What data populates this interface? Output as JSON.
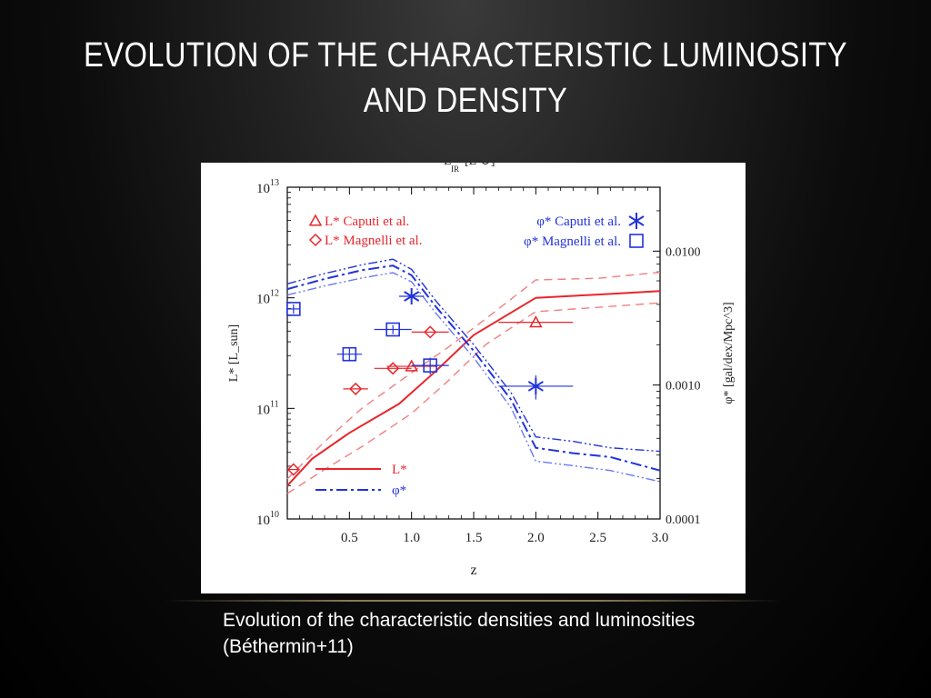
{
  "slide": {
    "title": "Evolution of the characteristic luminosity and density",
    "caption": "Evolution of the characteristic densities and luminosities (Béthermin+11)"
  },
  "colors": {
    "red": "#e8262b",
    "blue": "#2233d8",
    "lightred": "#f08080",
    "lightblue": "#6a7af0"
  },
  "chart_data": {
    "type": "line",
    "title": "",
    "top_label": "L_IR [L_sun]",
    "xlabel": "z",
    "ylabel_left": "L* [L_sun]",
    "ylabel_right": "φ* [gal/dex/Mpc^3]",
    "xlim": [
      0.0,
      3.0
    ],
    "ylim_left": [
      10000000000.0,
      10000000000000.0
    ],
    "ylim_right": [
      0.0001,
      0.03
    ],
    "x_ticks": [
      "0.5",
      "1.0",
      "1.5",
      "2.0",
      "2.5",
      "3.0"
    ],
    "y_ticks_left": [
      {
        "value": 10000000000.0,
        "base": "10",
        "exp": "10"
      },
      {
        "value": 100000000000.0,
        "base": "10",
        "exp": "11"
      },
      {
        "value": 1000000000000.0,
        "base": "10",
        "exp": "12"
      },
      {
        "value": 10000000000000.0,
        "base": "10",
        "exp": "13"
      }
    ],
    "y_ticks_right": [
      {
        "value": 0.0001,
        "label": "0.0001"
      },
      {
        "value": 0.001,
        "label": "0.0010"
      },
      {
        "value": 0.01,
        "label": "0.0100"
      }
    ],
    "legend": {
      "top_left": [
        "L* Caputi et al.",
        "L* Magnelli et al."
      ],
      "top_right": [
        "φ* Caputi et al.",
        "φ* Magnelli et al."
      ],
      "bottom": [
        "L*",
        "φ*"
      ]
    },
    "series": [
      {
        "name": "L*",
        "axis": "left",
        "style": "solid",
        "color": "#e8262b",
        "x": [
          0.0,
          0.2,
          0.5,
          0.9,
          1.2,
          1.5,
          2.0,
          2.5,
          3.0
        ],
        "y": [
          20000000000.0,
          35000000000.0,
          60000000000.0,
          110000000000.0,
          220000000000.0,
          460000000000.0,
          1000000000000.0,
          1070000000000.0,
          1150000000000.0
        ]
      },
      {
        "name": "L* upper",
        "axis": "left",
        "style": "dashed",
        "color": "#f08080",
        "x": [
          0.0,
          0.3,
          0.6,
          1.0,
          1.3,
          1.6,
          2.0,
          2.5,
          3.0
        ],
        "y": [
          23000000000.0,
          50000000000.0,
          100000000000.0,
          210000000000.0,
          360000000000.0,
          650000000000.0,
          1450000000000.0,
          1500000000000.0,
          1700000000000.0
        ]
      },
      {
        "name": "L* lower",
        "axis": "left",
        "style": "dashed",
        "color": "#f08080",
        "x": [
          0.0,
          0.3,
          0.6,
          1.0,
          1.3,
          1.6,
          2.0,
          2.5,
          3.0
        ],
        "y": [
          17000000000.0,
          28000000000.0,
          45000000000.0,
          90000000000.0,
          180000000000.0,
          380000000000.0,
          750000000000.0,
          820000000000.0,
          900000000000.0
        ]
      },
      {
        "name": "φ*",
        "axis": "right",
        "style": "dashdot",
        "color": "#2233d8",
        "x": [
          0.0,
          0.3,
          0.6,
          0.85,
          1.0,
          1.2,
          1.5,
          1.8,
          2.0,
          2.3,
          2.6,
          3.0
        ],
        "y": [
          0.0052,
          0.0062,
          0.0072,
          0.0078,
          0.0066,
          0.0038,
          0.0018,
          0.00078,
          0.00034,
          0.00031,
          0.00029,
          0.00023
        ]
      },
      {
        "name": "φ* upper",
        "axis": "right",
        "style": "dashdotdot",
        "color": "#2233d8",
        "x": [
          0.0,
          0.3,
          0.6,
          0.85,
          1.0,
          1.2,
          1.5,
          1.8,
          2.0,
          2.3,
          2.6,
          3.0
        ],
        "y": [
          0.0057,
          0.0068,
          0.0079,
          0.0087,
          0.0073,
          0.0042,
          0.002,
          0.00088,
          0.00041,
          0.00038,
          0.00034,
          0.00032
        ]
      },
      {
        "name": "φ* lower",
        "axis": "right",
        "style": "dashdotdot",
        "color": "#6a7af0",
        "x": [
          0.0,
          0.3,
          0.6,
          0.85,
          1.0,
          1.2,
          1.5,
          1.8,
          2.0,
          2.3,
          2.6,
          3.0
        ],
        "y": [
          0.0047,
          0.0055,
          0.0063,
          0.0069,
          0.0059,
          0.0034,
          0.0016,
          0.00068,
          0.00027,
          0.00025,
          0.00023,
          0.00019
        ]
      }
    ],
    "points": [
      {
        "source": "L* Caputi et al.",
        "marker": "triangle",
        "axis": "left",
        "color": "#e8262b",
        "data": [
          {
            "x": 1.0,
            "y": 240000000000.0,
            "xerr": 0.2,
            "yerr": 0.0
          },
          {
            "x": 2.0,
            "y": 600000000000.0,
            "xerr": 0.3,
            "yerr": 0.0
          }
        ]
      },
      {
        "source": "L* Magnelli et al.",
        "marker": "diamond",
        "axis": "left",
        "color": "#e8262b",
        "data": [
          {
            "x": 0.05,
            "y": 28000000000.0,
            "xerr": 0.05,
            "yerr": 0.0
          },
          {
            "x": 0.55,
            "y": 150000000000.0,
            "xerr": 0.1,
            "yerr": 0.0
          },
          {
            "x": 0.85,
            "y": 230000000000.0,
            "xerr": 0.15,
            "yerr": 0.0
          },
          {
            "x": 1.15,
            "y": 490000000000.0,
            "xerr": 0.15,
            "yerr": 0.0
          }
        ]
      },
      {
        "source": "φ* Caputi et al.",
        "marker": "asterisk",
        "axis": "right",
        "color": "#2233d8",
        "data": [
          {
            "x": 1.0,
            "y": 0.0046,
            "xerr": 0.1,
            "yerr": 0.0004
          },
          {
            "x": 2.0,
            "y": 0.00098,
            "xerr": 0.3,
            "yerr": 0.0002
          }
        ]
      },
      {
        "source": "φ* Magnelli et al.",
        "marker": "square",
        "axis": "right",
        "color": "#2233d8",
        "data": [
          {
            "x": 0.05,
            "y": 0.0037,
            "xerr": 0.05,
            "yerr": 0.0003
          },
          {
            "x": 0.5,
            "y": 0.0017,
            "xerr": 0.1,
            "yerr": 0.0002
          },
          {
            "x": 0.85,
            "y": 0.0026,
            "xerr": 0.15,
            "yerr": 0.0002
          },
          {
            "x": 1.15,
            "y": 0.0014,
            "xerr": 0.15,
            "yerr": 0.0002
          }
        ]
      }
    ]
  }
}
